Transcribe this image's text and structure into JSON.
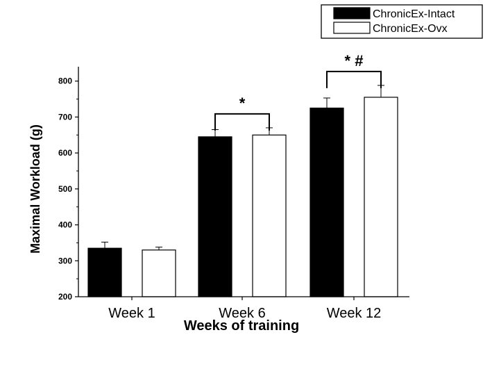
{
  "chart_data": {
    "type": "bar",
    "categories": [
      "Week 1",
      "Week 6",
      "Week 12"
    ],
    "series": [
      {
        "name": "ChronicEx-Intact",
        "values": [
          335,
          645,
          725
        ],
        "errors": [
          17,
          20,
          28
        ],
        "color": "#000000"
      },
      {
        "name": "ChronicEx-Ovx",
        "values": [
          330,
          650,
          755
        ],
        "errors": [
          8,
          20,
          33
        ],
        "color": "#ffffff"
      }
    ],
    "xlabel": "Weeks of training",
    "ylabel": "Maximal Workload (g)",
    "ylim": [
      200,
      840
    ],
    "yticks": [
      200,
      300,
      400,
      500,
      600,
      700,
      800
    ],
    "legend_position": "top-right",
    "grid": false,
    "annotations": [
      {
        "category": "Week 6",
        "text": "*"
      },
      {
        "category": "Week 12",
        "text": "* #"
      }
    ]
  }
}
